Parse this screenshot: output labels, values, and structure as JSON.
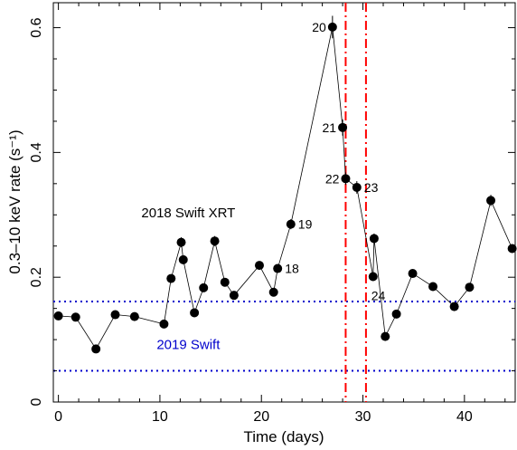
{
  "chart_data": {
    "type": "scatter",
    "xlabel": "Time (days)",
    "ylabel": "0.3–10 keV rate (s⁻¹)",
    "xlim": [
      -0.5,
      45
    ],
    "ylim": [
      0,
      0.64
    ],
    "xticks": [
      0,
      10,
      20,
      30,
      40
    ],
    "xtick_labels": [
      "0",
      "10",
      "20",
      "30",
      "40"
    ],
    "yticks": [
      0,
      0.2,
      0.4,
      0.6
    ],
    "ytick_labels": [
      "0",
      "0.2",
      "0.4",
      "0.6"
    ],
    "series": [
      {
        "x": [
          0.0,
          1.7,
          3.7,
          5.6,
          7.5,
          10.4,
          11.1,
          12.1,
          12.3,
          13.4,
          14.3,
          15.4,
          16.4,
          17.3,
          19.8,
          21.2,
          21.6,
          22.9,
          27.0,
          28.0,
          28.3,
          29.4,
          31.0,
          31.1,
          32.2,
          33.3,
          34.9,
          36.9,
          39.0,
          40.5,
          42.6,
          44.7
        ],
        "y": [
          0.138,
          0.136,
          0.085,
          0.14,
          0.137,
          0.125,
          0.198,
          0.256,
          0.228,
          0.143,
          0.183,
          0.258,
          0.192,
          0.171,
          0.219,
          0.176,
          0.214,
          0.285,
          0.601,
          0.44,
          0.358,
          0.344,
          0.201,
          0.262,
          0.105,
          0.141,
          0.206,
          0.185,
          0.153,
          0.184,
          0.323,
          0.246
        ],
        "yerr": [
          0.004,
          0.004,
          0.005,
          0.004,
          0.004,
          0.004,
          0.006,
          0.008,
          0.007,
          0.005,
          0.005,
          0.008,
          0.006,
          0.005,
          0.006,
          0.005,
          0.006,
          0.008,
          0.018,
          0.013,
          0.01,
          0.01,
          0.006,
          0.008,
          0.004,
          0.005,
          0.006,
          0.006,
          0.005,
          0.005,
          0.009,
          0.007
        ]
      }
    ],
    "point_labels": [
      {
        "point": 16,
        "text": "18",
        "side": "right"
      },
      {
        "point": 17,
        "text": "19",
        "side": "right"
      },
      {
        "point": 18,
        "text": "20",
        "side": "left"
      },
      {
        "point": 19,
        "text": "21",
        "side": "left"
      },
      {
        "point": 20,
        "text": "22",
        "side": "left"
      },
      {
        "point": 21,
        "text": "23",
        "side": "right"
      },
      {
        "point": 22,
        "text": "24",
        "side": "below"
      }
    ],
    "vlines": [
      {
        "x": 28.3,
        "color": "#ff0000",
        "style": "dash-dot"
      },
      {
        "x": 30.3,
        "color": "#ff0000",
        "style": "dash-dot"
      }
    ],
    "hlines": [
      {
        "y": 0.161,
        "color": "#0000cc",
        "style": "dotted"
      },
      {
        "y": 0.05,
        "color": "#0000cc",
        "style": "dotted"
      }
    ],
    "annotations": [
      {
        "text": "2018 Swift XRT",
        "x": 12.8,
        "y": 0.296,
        "color": "#000000"
      },
      {
        "text": "2019 Swift",
        "x": 12.8,
        "y": 0.085,
        "color": "#0000cc"
      }
    ]
  }
}
